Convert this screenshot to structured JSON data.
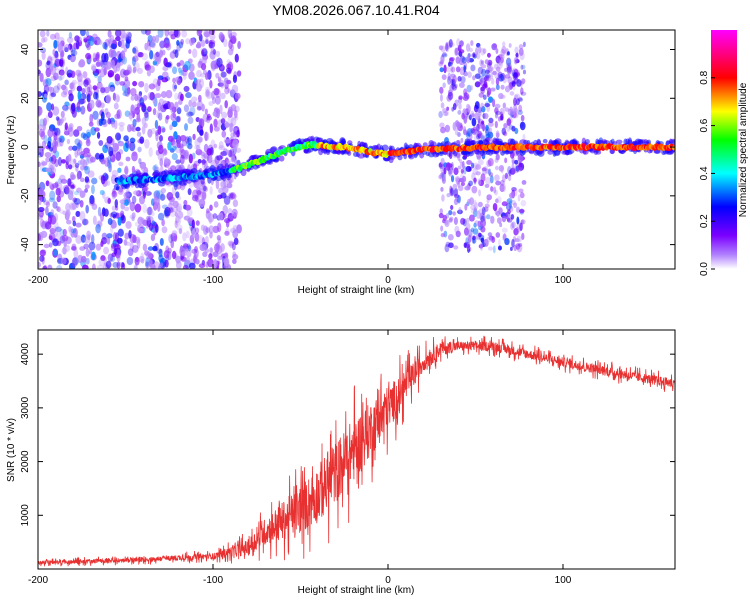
{
  "title": "YM08.2026.067.10.41.R04",
  "chart_data": [
    {
      "type": "heatmap",
      "name": "spectrogram",
      "xlabel": "Height of straight line (km)",
      "ylabel": "Frequency (Hz)",
      "xlim": [
        -200,
        164
      ],
      "ylim": [
        -50,
        48
      ],
      "xticks": [
        -200,
        -100,
        0,
        100
      ],
      "xtick_labels": [
        "-200",
        "-100",
        "0",
        "100"
      ],
      "yticks": [
        -40,
        -20,
        0,
        20,
        40
      ],
      "ytick_labels": [
        "-40",
        "-20",
        "0",
        "20",
        "40"
      ],
      "colorbar": {
        "label": "Normalized spectral amplitude",
        "range": [
          0,
          1
        ],
        "ticks": [
          0.0,
          0.2,
          0.4,
          0.6,
          0.8
        ],
        "tick_labels": [
          "0.0",
          "0.2",
          "0.4",
          "0.6",
          "0.8"
        ],
        "colors": [
          "#ffffff",
          "#7b00ff",
          "#0000ff",
          "#00ffff",
          "#00ff00",
          "#ffff00",
          "#ff0000",
          "#ff00ff"
        ]
      },
      "features": {
        "noise_region_km": [
          -200,
          -85
        ],
        "noise_burst_km": [
          30,
          78
        ],
        "signal_line_track_km": [
          -155,
          -130,
          -110,
          -90,
          -60,
          -45,
          -25,
          -10,
          0,
          20,
          60,
          100,
          164
        ],
        "signal_line_freq_hz": [
          -14,
          -13,
          -12,
          -10,
          -2,
          1,
          0,
          -2,
          -3,
          -1,
          0,
          0,
          0
        ]
      }
    },
    {
      "type": "line",
      "name": "snr",
      "xlabel": "Height of straight line (km)",
      "ylabel": "SNR (10 * v/v)",
      "xlim": [
        -200,
        164
      ],
      "ylim": [
        0,
        4450
      ],
      "xticks": [
        -200,
        -100,
        0,
        100
      ],
      "xtick_labels": [
        "-200",
        "-100",
        "0",
        "100"
      ],
      "yticks": [
        1000,
        2000,
        3000,
        4000
      ],
      "ytick_labels": [
        "1000",
        "2000",
        "3000",
        "4000"
      ],
      "color": "#e83030",
      "trend_x": [
        -200,
        -150,
        -100,
        -80,
        -70,
        -60,
        -50,
        -40,
        -30,
        -20,
        -10,
        0,
        10,
        20,
        30,
        40,
        60,
        80,
        100,
        130,
        164
      ],
      "trend_y": [
        120,
        160,
        240,
        400,
        700,
        900,
        1100,
        1400,
        1800,
        2200,
        2600,
        3000,
        3400,
        3850,
        4100,
        4150,
        4150,
        4000,
        3850,
        3650,
        3450
      ],
      "noise_amp_x": [
        -200,
        -100,
        -80,
        -60,
        -40,
        -20,
        0,
        20,
        40,
        100,
        164
      ],
      "noise_amp_y": [
        60,
        90,
        250,
        600,
        900,
        1000,
        700,
        300,
        150,
        150,
        150
      ]
    }
  ]
}
